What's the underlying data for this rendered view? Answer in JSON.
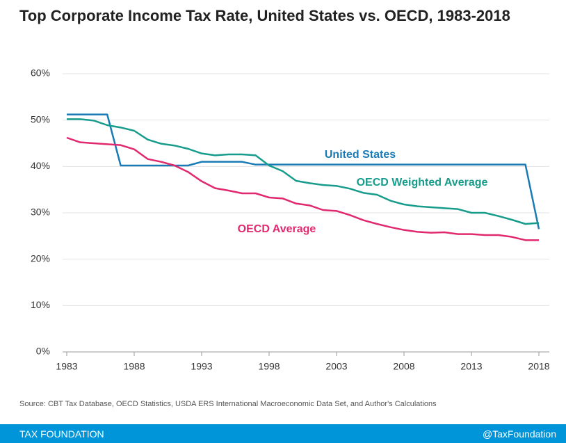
{
  "chart_data": {
    "type": "line",
    "title": "Top Corporate Income Tax Rate, United States vs. OECD, 1983-2018",
    "x": [
      1983,
      1984,
      1985,
      1986,
      1987,
      1988,
      1989,
      1990,
      1991,
      1992,
      1993,
      1994,
      1995,
      1996,
      1997,
      1998,
      1999,
      2000,
      2001,
      2002,
      2003,
      2004,
      2005,
      2006,
      2007,
      2008,
      2009,
      2010,
      2011,
      2012,
      2013,
      2014,
      2015,
      2016,
      2017,
      2018
    ],
    "series": [
      {
        "name": "United States",
        "color": "#1a7ab5",
        "values": [
          51.2,
          51.2,
          51.2,
          51.2,
          40.2,
          40.2,
          40.2,
          40.2,
          40.2,
          40.2,
          41.0,
          41.0,
          41.0,
          41.0,
          40.4,
          40.4,
          40.4,
          40.4,
          40.4,
          40.4,
          40.4,
          40.4,
          40.4,
          40.4,
          40.4,
          40.4,
          40.4,
          40.4,
          40.4,
          40.4,
          40.4,
          40.4,
          40.4,
          40.4,
          40.4,
          26.5
        ]
      },
      {
        "name": "OECD Weighted Average",
        "color": "#179c8c",
        "values": [
          50.2,
          50.2,
          49.9,
          48.9,
          48.4,
          47.7,
          45.8,
          44.9,
          44.5,
          43.8,
          42.8,
          42.4,
          42.6,
          42.6,
          42.4,
          40.2,
          39.0,
          36.9,
          36.4,
          36.0,
          35.8,
          35.2,
          34.3,
          33.9,
          32.6,
          31.8,
          31.4,
          31.2,
          31.0,
          30.8,
          30.0,
          30.0,
          29.3,
          28.5,
          27.6,
          27.8
        ]
      },
      {
        "name": "OECD Average",
        "color": "#e0296e",
        "values": [
          46.2,
          45.2,
          45.0,
          44.8,
          44.6,
          43.7,
          41.6,
          41.0,
          40.2,
          38.8,
          36.8,
          35.3,
          34.8,
          34.2,
          34.2,
          33.3,
          33.1,
          32.0,
          31.6,
          30.6,
          30.4,
          29.5,
          28.4,
          27.6,
          26.9,
          26.3,
          25.9,
          25.7,
          25.8,
          25.4,
          25.4,
          25.2,
          25.2,
          24.8,
          24.1,
          24.1
        ]
      }
    ],
    "xlim": [
      1983,
      2018
    ],
    "xticks": [
      1983,
      1988,
      1993,
      1998,
      2003,
      2008,
      2013,
      2018
    ],
    "ylim": [
      0,
      60
    ],
    "yticks": [
      {
        "value": 0,
        "label": "0%"
      },
      {
        "value": 10,
        "label": "10%"
      },
      {
        "value": 20,
        "label": "20%"
      },
      {
        "value": 30,
        "label": "30%"
      },
      {
        "value": 40,
        "label": "40%"
      },
      {
        "value": 50,
        "label": "50%"
      },
      {
        "value": 60,
        "label": "60%"
      }
    ],
    "grid": true
  },
  "source": "Source: CBT Tax Database, OECD Statistics, USDA ERS International Macroeconomic Data Set, and Author's Calculations",
  "footer": {
    "left": "TAX FOUNDATION",
    "right": "@TaxFoundation"
  }
}
